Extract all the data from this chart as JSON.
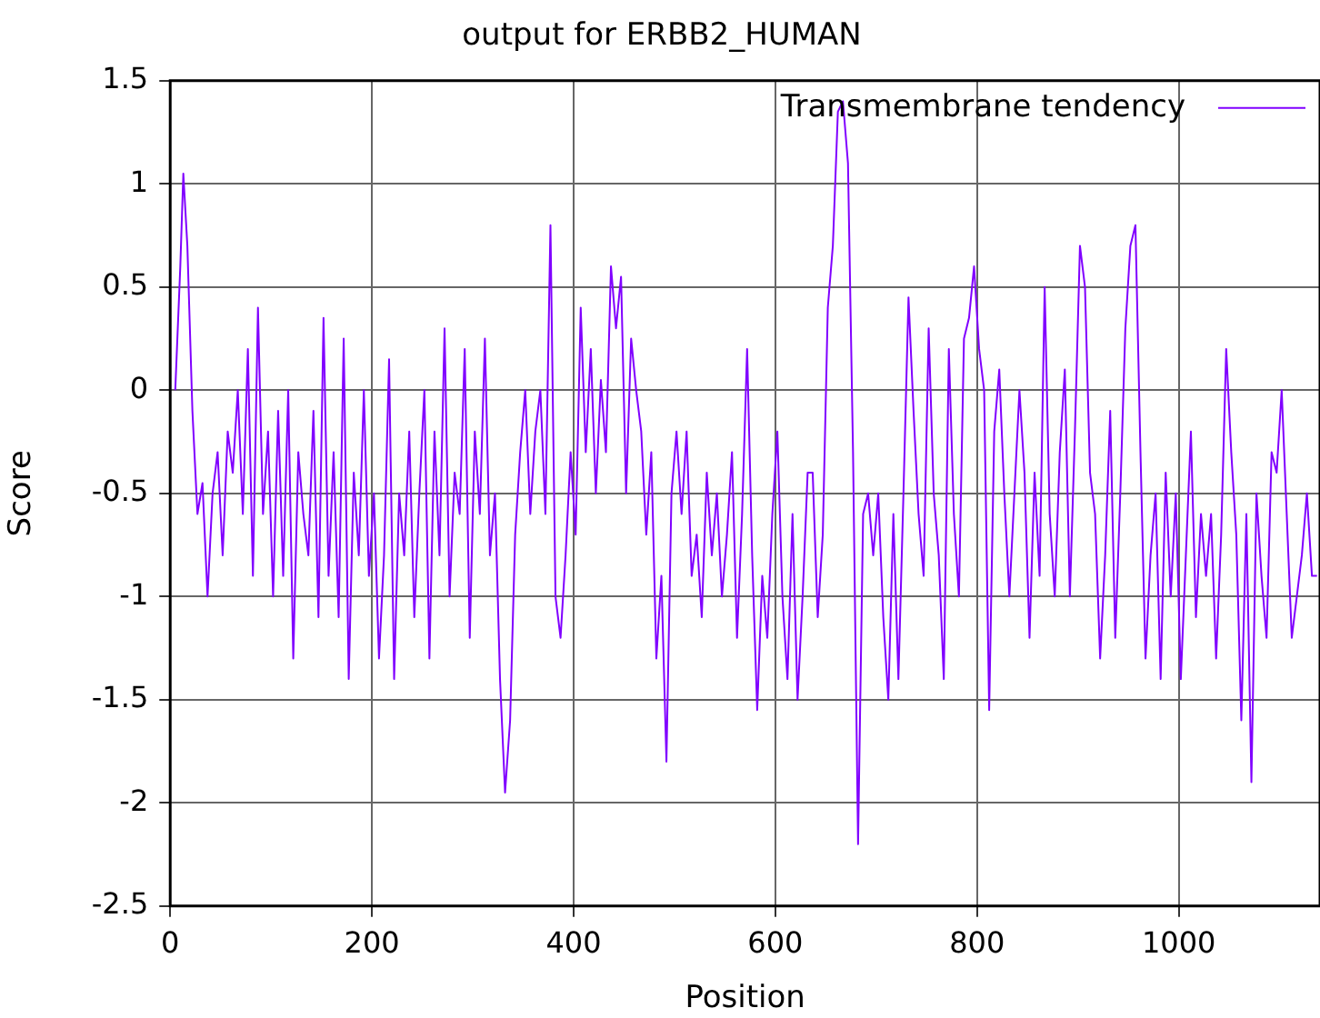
{
  "chart_data": {
    "type": "line",
    "title": "output for ERBB2_HUMAN",
    "xlabel": "Position",
    "ylabel": "Score",
    "xlim": [
      0,
      1140
    ],
    "xticks": [
      0,
      200,
      400,
      600,
      800,
      1000
    ],
    "ylim": [
      -2.5,
      1.5
    ],
    "yticks": [
      -2.5,
      -2,
      -1.5,
      -1,
      -0.5,
      0,
      0.5,
      1,
      1.5
    ],
    "grid": true,
    "legend": "top right",
    "marker": "none",
    "line_style": "solid",
    "series": [
      {
        "name": "Transmembrane tendency",
        "color": "#8000ff",
        "x": [
          5,
          10,
          13,
          17,
          22,
          27,
          32,
          37,
          42,
          47,
          52,
          57,
          62,
          67,
          72,
          77,
          82,
          87,
          92,
          97,
          102,
          107,
          112,
          117,
          122,
          127,
          132,
          137,
          142,
          147,
          152,
          157,
          162,
          167,
          172,
          177,
          182,
          187,
          192,
          197,
          202,
          207,
          212,
          217,
          222,
          227,
          232,
          237,
          242,
          247,
          252,
          257,
          262,
          267,
          272,
          277,
          282,
          287,
          292,
          297,
          302,
          307,
          312,
          317,
          322,
          327,
          332,
          337,
          342,
          347,
          352,
          357,
          362,
          367,
          372,
          377,
          382,
          387,
          392,
          397,
          402,
          407,
          412,
          417,
          422,
          427,
          432,
          437,
          442,
          447,
          452,
          457,
          462,
          467,
          472,
          477,
          482,
          487,
          492,
          497,
          502,
          507,
          512,
          517,
          522,
          527,
          532,
          537,
          542,
          547,
          552,
          557,
          562,
          567,
          572,
          577,
          582,
          587,
          592,
          597,
          602,
          607,
          612,
          617,
          622,
          627,
          632,
          637,
          642,
          647,
          652,
          657,
          662,
          667,
          672,
          677,
          682,
          687,
          692,
          697,
          702,
          707,
          712,
          717,
          722,
          727,
          732,
          737,
          742,
          747,
          752,
          757,
          762,
          767,
          772,
          777,
          782,
          787,
          792,
          797,
          802,
          807,
          812,
          817,
          822,
          827,
          832,
          842,
          847,
          852,
          857,
          862,
          867,
          872,
          877,
          882,
          887,
          892,
          897,
          902,
          907,
          912,
          917,
          922,
          927,
          932,
          937,
          942,
          947,
          952,
          957,
          962,
          967,
          972,
          977,
          982,
          987,
          992,
          997,
          1002,
          1007,
          1012,
          1017,
          1022,
          1027,
          1032,
          1037,
          1042,
          1047,
          1052,
          1057,
          1062,
          1067,
          1072,
          1077,
          1082,
          1087,
          1092,
          1097,
          1102,
          1107,
          1112,
          1117,
          1122,
          1127,
          1132,
          1137
        ],
        "values": [
          0.0,
          0.6,
          1.05,
          0.7,
          -0.1,
          -0.6,
          -0.45,
          -1.0,
          -0.5,
          -0.3,
          -0.8,
          -0.2,
          -0.4,
          0.0,
          -0.6,
          0.2,
          -0.9,
          0.4,
          -0.6,
          -0.2,
          -1.0,
          -0.1,
          -0.9,
          0.0,
          -1.3,
          -0.3,
          -0.6,
          -0.8,
          -0.1,
          -1.1,
          0.35,
          -0.9,
          -0.3,
          -1.1,
          0.25,
          -1.4,
          -0.4,
          -0.8,
          0.0,
          -0.9,
          -0.5,
          -1.3,
          -0.8,
          0.15,
          -1.4,
          -0.5,
          -0.8,
          -0.2,
          -1.1,
          -0.5,
          0.0,
          -1.3,
          -0.2,
          -0.8,
          0.3,
          -1.0,
          -0.4,
          -0.6,
          0.2,
          -1.2,
          -0.2,
          -0.6,
          0.25,
          -0.8,
          -0.5,
          -1.4,
          -1.95,
          -1.6,
          -0.7,
          -0.3,
          0.0,
          -0.6,
          -0.2,
          0.0,
          -0.6,
          0.8,
          -1.0,
          -1.2,
          -0.8,
          -0.3,
          -0.7,
          0.4,
          -0.3,
          0.2,
          -0.5,
          0.05,
          -0.3,
          0.6,
          0.3,
          0.55,
          -0.5,
          0.25,
          0.0,
          -0.2,
          -0.7,
          -0.3,
          -1.3,
          -0.9,
          -1.8,
          -0.5,
          -0.2,
          -0.6,
          -0.2,
          -0.9,
          -0.7,
          -1.1,
          -0.4,
          -0.8,
          -0.5,
          -1.0,
          -0.7,
          -0.3,
          -1.2,
          -0.6,
          0.2,
          -0.8,
          -1.55,
          -0.9,
          -1.2,
          -0.6,
          -0.2,
          -1.0,
          -1.4,
          -0.6,
          -1.5,
          -1.0,
          -0.4,
          -0.4,
          -1.1,
          -0.7,
          0.4,
          0.7,
          1.35,
          1.4,
          1.1,
          -0.3,
          -2.2,
          -0.6,
          -0.5,
          -0.8,
          -0.5,
          -1.1,
          -1.5,
          -0.6,
          -1.4,
          -0.5,
          0.45,
          -0.1,
          -0.6,
          -0.9,
          0.3,
          -0.5,
          -0.8,
          -1.4,
          0.2,
          -0.6,
          -1.0,
          0.25,
          0.35,
          0.6,
          0.2,
          0.0,
          -1.55,
          -0.2,
          0.1,
          -0.5,
          -1.0,
          0.0,
          -0.4,
          -1.2,
          -0.4,
          -0.9,
          0.5,
          -0.6,
          -1.0,
          -0.3,
          0.1,
          -1.0,
          -0.2,
          0.7,
          0.5,
          -0.4,
          -0.6,
          -1.3,
          -0.8,
          -0.1,
          -1.2,
          -0.5,
          0.3,
          0.7,
          0.8,
          -0.3,
          -1.3,
          -0.8,
          -0.5,
          -1.4,
          -0.4,
          -1.0,
          -0.5,
          -1.4,
          -0.8,
          -0.2,
          -1.1,
          -0.6,
          -0.9,
          -0.6,
          -1.3,
          -0.7,
          0.2,
          -0.3,
          -0.7,
          -1.6,
          -0.6,
          -1.9,
          -0.5,
          -0.9,
          -1.2,
          -0.3,
          -0.4,
          0.0,
          -0.6,
          -1.2,
          -1.0,
          -0.8,
          -0.5,
          -0.9,
          -0.9
        ]
      }
    ]
  }
}
